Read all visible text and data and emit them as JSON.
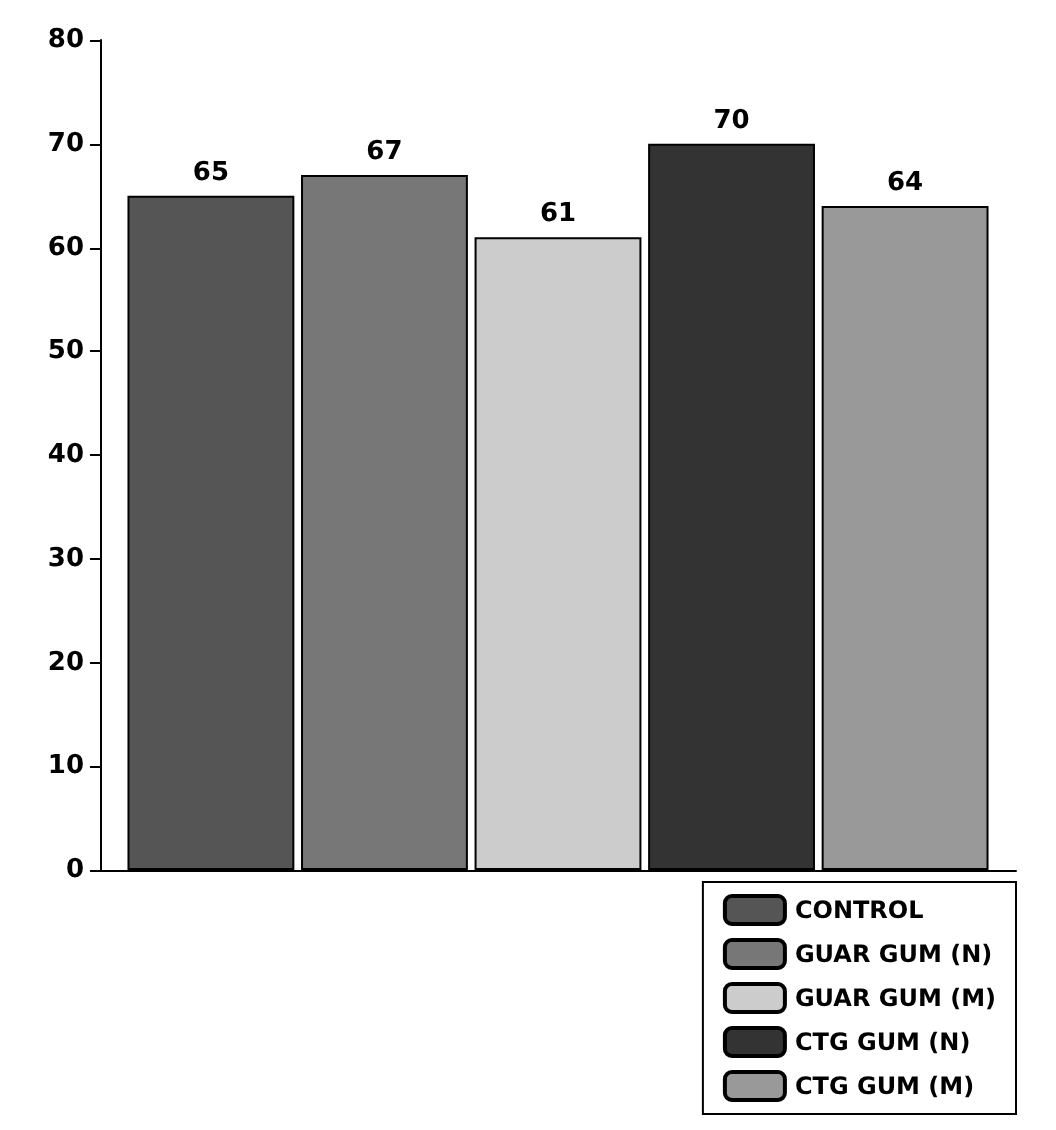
{
  "chart_data": {
    "type": "bar",
    "categories": [
      null
    ],
    "series": [
      {
        "name": "CONTROL",
        "color": "#555555",
        "values": [
          65
        ]
      },
      {
        "name": "GUAR GUM (N)",
        "color": "#777777",
        "values": [
          67
        ]
      },
      {
        "name": "GUAR GUM (M)",
        "color": "#cccccc",
        "values": [
          61
        ]
      },
      {
        "name": "CTG GUM (N)",
        "color": "#333333",
        "values": [
          70
        ]
      },
      {
        "name": "CTG GUM (M)",
        "color": "#999999",
        "values": [
          64
        ]
      }
    ],
    "ylim": [
      0,
      80
    ],
    "yticks": [
      0,
      10,
      20,
      30,
      40,
      50,
      60,
      70,
      80
    ],
    "data_labels": true,
    "legend": "bottom right",
    "grid": false
  }
}
